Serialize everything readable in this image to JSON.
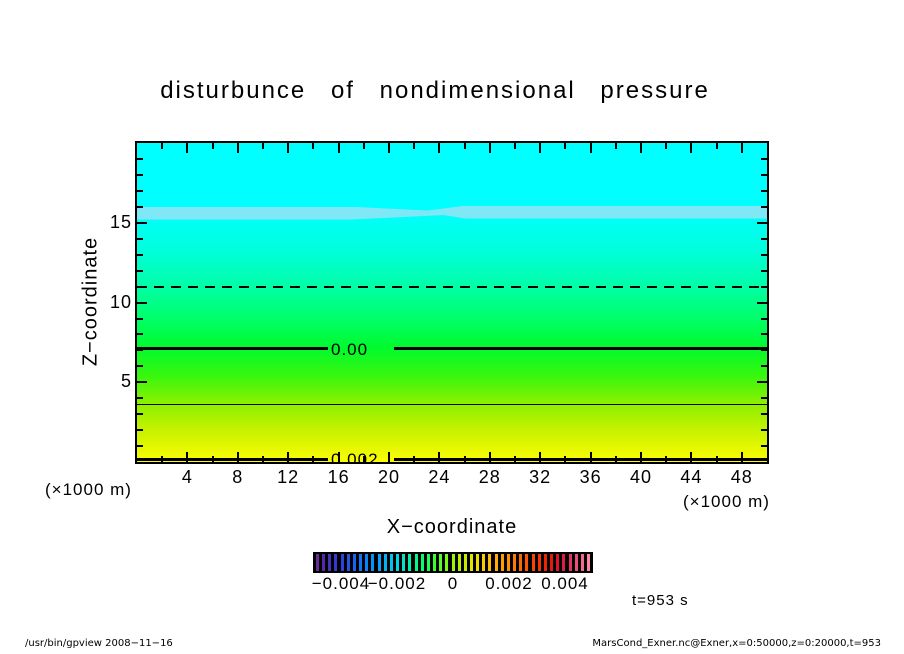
{
  "title": "disturbunce  of  nondimensional  pressure",
  "y_axis": {
    "label": "Z−coordinate",
    "unit": "(×1000 m)",
    "major_ticks": [
      5,
      10,
      15
    ],
    "minor_step": 1,
    "range": [
      0,
      20
    ]
  },
  "x_axis": {
    "label": "X−coordinate",
    "unit": "(×1000 m)",
    "major_ticks": [
      4,
      8,
      12,
      16,
      20,
      24,
      28,
      32,
      36,
      40,
      44,
      48
    ],
    "minor_step": 2,
    "range": [
      0,
      50
    ]
  },
  "annotation": "t=953 s",
  "footer": {
    "left": "/usr/bin/gpview  2008−11−16",
    "right": "MarsCond_Exner.nc@Exner,x=0:50000,z=0:20000,t=953"
  },
  "chart_data": {
    "type": "heatmap",
    "title": "disturbunce of nondimensional pressure",
    "xlabel": "X-coordinate (×1000 m)",
    "ylabel": "Z-coordinate (×1000 m)",
    "xlim": [
      0,
      50
    ],
    "ylim": [
      0,
      20
    ],
    "value_range": [
      -0.005,
      0.005
    ],
    "description": "Horizontally uniform field: pressure disturbance decreases with height, ~+0.0022 (yellow) at z=0 to ~-0.0025 (cyan) at z=20.",
    "gradient_stops": [
      {
        "pos": 0,
        "color": "#00ffff"
      },
      {
        "pos": 21,
        "color": "#00ffff"
      },
      {
        "pos": 33,
        "color": "#00ffdd"
      },
      {
        "pos": 45,
        "color": "#00ffa6"
      },
      {
        "pos": 56,
        "color": "#00ff63"
      },
      {
        "pos": 64,
        "color": "#00fa2e"
      },
      {
        "pos": 73,
        "color": "#38f70e"
      },
      {
        "pos": 82,
        "color": "#8ef000"
      },
      {
        "pos": 91,
        "color": "#ccf200"
      },
      {
        "pos": 100,
        "color": "#fdfd00"
      }
    ],
    "light_band": {
      "z_top": 16.0,
      "z_bottom": 15.2,
      "color": "#7fe7f6"
    },
    "contours": [
      {
        "z": 11.0,
        "style": "dashed",
        "label": ""
      },
      {
        "z": 7.1,
        "style": "thick",
        "label": "0.00"
      },
      {
        "z": 3.6,
        "style": "thin",
        "label": ""
      },
      {
        "z": 0.15,
        "style": "thick",
        "label": "0.002"
      }
    ],
    "colorbar": {
      "labels": [
        "−0.004",
        "−0.002",
        "0",
        "0.002",
        "0.004"
      ],
      "label_values": [
        -0.004,
        -0.002,
        0,
        0.002,
        0.004
      ],
      "palette": [
        "#6a2a9a",
        "#5528aa",
        "#4530bc",
        "#3838cc",
        "#2c44dc",
        "#2254e8",
        "#1864f2",
        "#0e74fa",
        "#0684ff",
        "#0094ff",
        "#00a4fc",
        "#00b4f4",
        "#00c4ec",
        "#00d4e0",
        "#00e2cc",
        "#00eeac",
        "#00f88c",
        "#06fe6c",
        "#1cff4c",
        "#38ff30",
        "#58ff1c",
        "#78fe0c",
        "#98f800",
        "#b4f000",
        "#ccea00",
        "#e0e400",
        "#eeda00",
        "#f8cc00",
        "#ffbc00",
        "#ffac00",
        "#ff9c00",
        "#ff8c00",
        "#ff7a00",
        "#ff6800",
        "#ff5600",
        "#fc4400",
        "#f63400",
        "#ee2600",
        "#e41a10",
        "#dc1228",
        "#de1c44",
        "#e63260",
        "#ee4c7a",
        "#f66890",
        "#fc86a2"
      ]
    },
    "annotation": "t=953 s"
  }
}
